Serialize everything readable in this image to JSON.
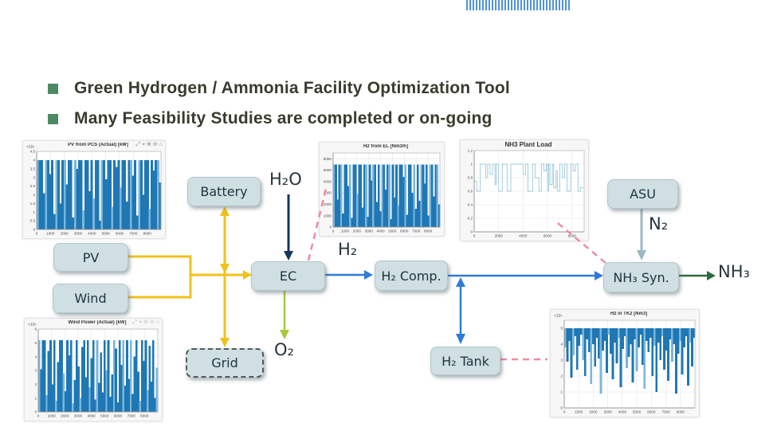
{
  "slide": {
    "bullets": [
      {
        "text": "Green Hydrogen / Ammonia Facility Optimization Tool"
      },
      {
        "text": "Many Feasibility Studies are completed or on-going"
      }
    ]
  },
  "colors": {
    "bullet_green": "#4d8a63",
    "title_text": "#3a3a2e",
    "box_fill": "#cfdfe2",
    "box_border": "#b3c6ca",
    "box_text": "#1e3440",
    "power_yellow": "#f0c21b",
    "water_navy": "#16365c",
    "oxygen_green": "#a6c93d",
    "hydrogen_blue": "#2f7bd6",
    "nitrogen_steel": "#9cb9c1",
    "ammonia_green": "#2e6b3c",
    "monitor_pink": "#f08ba0",
    "chart_blue": "#1f77b4"
  },
  "boxes": {
    "battery": {
      "label": "Battery"
    },
    "pv": {
      "label": "PV"
    },
    "wind": {
      "label": "Wind"
    },
    "ec": {
      "label": "EC"
    },
    "h2comp": {
      "label": "H₂ Comp."
    },
    "h2tank": {
      "label": "H₂ Tank"
    },
    "nh3syn": {
      "label": "NH₃ Syn."
    },
    "asu": {
      "label": "ASU"
    },
    "grid": {
      "label": "Grid"
    }
  },
  "stream_labels": {
    "h2o": "H₂O",
    "h2": "H₂",
    "o2": "O₂",
    "n2": "N₂",
    "nh3": "NH₃"
  },
  "chart_toolbar": {
    "icons": [
      {
        "name": "export-icon",
        "glyph": "⤢"
      },
      {
        "name": "datatip-icon",
        "glyph": "⌖"
      },
      {
        "name": "zoom-in-icon",
        "glyph": "⊕"
      },
      {
        "name": "zoom-out-icon",
        "glyph": "⊖"
      },
      {
        "name": "home-icon",
        "glyph": "⌂"
      }
    ]
  },
  "chart_data": [
    {
      "id": "pv",
      "type": "bar",
      "title": "PV from PCS (Actual) [kW]",
      "exp_label": "×10⁴",
      "xlabel": "",
      "ylabel": "",
      "toolbar": true,
      "color": "#1f77b4",
      "color_light": "#7ab6dd",
      "ylim": [
        0,
        4.5
      ],
      "yticks": [
        0,
        0.5,
        1,
        1.5,
        2,
        2.5,
        3,
        3.5,
        4,
        4.5
      ],
      "xlim": [
        0,
        9000
      ],
      "xticks": [
        0,
        1000,
        2000,
        3000,
        4000,
        5000,
        6000,
        7000,
        8000
      ],
      "values": [
        4,
        4,
        4,
        2.1,
        4,
        4,
        3.2,
        4,
        0.9,
        4,
        4,
        1.5,
        4,
        4,
        2.6,
        4,
        4,
        0.7,
        4,
        3.5,
        4,
        4,
        1.1,
        4,
        4,
        2.2,
        4,
        1.8,
        4,
        4,
        0.5,
        4,
        4,
        2.9,
        4,
        4,
        1.3,
        4,
        3.6,
        4,
        2.4,
        4,
        4,
        1.6,
        4,
        4,
        3.1,
        4,
        0.8,
        4,
        4,
        2.0,
        4,
        4,
        1.2,
        4,
        3.4,
        4,
        4,
        2.7
      ]
    },
    {
      "id": "wind",
      "type": "bar",
      "title": "Wind Power (Actual) [kW]",
      "exp_label": "×10⁴",
      "xlabel": "",
      "ylabel": "",
      "toolbar": true,
      "color": "#1f77b4",
      "color_light": "#7ab6dd",
      "ylim": [
        0,
        6
      ],
      "yticks": [
        0,
        1,
        2,
        3,
        4,
        5,
        6
      ],
      "xlim": [
        0,
        9000
      ],
      "xticks": [
        0,
        1000,
        2000,
        3000,
        4000,
        5000,
        6000,
        7000,
        8000
      ],
      "values": [
        5.2,
        3.1,
        5.2,
        5.2,
        1.2,
        4.4,
        5.2,
        2.0,
        5.2,
        0.8,
        3.6,
        5.2,
        5.2,
        2.8,
        1.5,
        5.2,
        4.1,
        5.2,
        0.6,
        2.3,
        5.2,
        3.3,
        1.0,
        4.7,
        5.2,
        2.5,
        5.2,
        1.8,
        3.9,
        5.2,
        0.9,
        5.2,
        2.1,
        4.3,
        1.4,
        5.2,
        3.0,
        5.2,
        1.1,
        2.7,
        5.2,
        4.6,
        0.7,
        5.2,
        3.4,
        5.2,
        1.9,
        5.2,
        2.4,
        5.2,
        1.3,
        4.0,
        5.2,
        2.9,
        0.8,
        5.2,
        3.7,
        5.2,
        1.6,
        4.8,
        2.2,
        5.2,
        1.0,
        3.2
      ]
    },
    {
      "id": "el",
      "type": "bar",
      "title": "H2 from EL [Nm3/h]",
      "exp_label": "",
      "xlabel": "",
      "ylabel": "",
      "toolbar": false,
      "color": "#1f77b4",
      "color_light": "#7ab6dd",
      "ylim": [
        0,
        6500
      ],
      "yticks": [
        0,
        1000,
        2000,
        3000,
        4000,
        5000,
        6000
      ],
      "xlim": [
        0,
        9000
      ],
      "xticks": [
        0,
        1000,
        2000,
        3000,
        4000,
        5000,
        6000,
        7000,
        8000
      ],
      "values": [
        5500,
        5500,
        2400,
        5500,
        5500,
        1200,
        5500,
        5500,
        3600,
        5500,
        800,
        5500,
        5500,
        2900,
        5500,
        5500,
        1700,
        5500,
        5500,
        900,
        5500,
        4100,
        5500,
        5500,
        2200,
        5500,
        1400,
        5500,
        5500,
        3300,
        5500,
        5500,
        700,
        5500,
        2600,
        5500,
        1900,
        5500,
        5500,
        4400,
        5500,
        1100,
        5500,
        5500,
        3000,
        5500,
        1600,
        5500,
        2300,
        5500,
        5500,
        3800,
        5500,
        1000,
        5500,
        5500,
        2700,
        5500,
        5500,
        2000
      ]
    },
    {
      "id": "nh3load",
      "type": "step",
      "title": "NH3 Plant Load",
      "exp_label": "",
      "xlabel": "",
      "ylabel": "",
      "toolbar": false,
      "color": "#9cc8dc",
      "color_light": "#9cc8dc",
      "ylim": [
        0,
        1.2
      ],
      "yticks": [
        0,
        0.2,
        0.4,
        0.6,
        0.8,
        1,
        1.2
      ],
      "xlim": [
        0,
        9000
      ],
      "xticks": [
        0,
        2000,
        4000,
        6000,
        8000
      ],
      "points": [
        [
          0,
          0.75
        ],
        [
          200,
          0.6
        ],
        [
          500,
          1
        ],
        [
          900,
          1
        ],
        [
          950,
          0.8
        ],
        [
          1100,
          1
        ],
        [
          1300,
          0.85
        ],
        [
          1500,
          1
        ],
        [
          1700,
          0.7
        ],
        [
          1800,
          1
        ],
        [
          2000,
          0.6
        ],
        [
          2300,
          1
        ],
        [
          2700,
          0.6
        ],
        [
          3000,
          1
        ],
        [
          3900,
          1
        ],
        [
          4000,
          0.85
        ],
        [
          4200,
          1
        ],
        [
          4400,
          0.6
        ],
        [
          4800,
          1
        ],
        [
          5000,
          0.8
        ],
        [
          5300,
          0.6
        ],
        [
          5500,
          1
        ],
        [
          5700,
          0.9
        ],
        [
          5900,
          1
        ],
        [
          6000,
          0.6
        ],
        [
          6100,
          1
        ],
        [
          6200,
          0.7
        ],
        [
          6400,
          1
        ],
        [
          6500,
          0.65
        ],
        [
          6700,
          0.9
        ],
        [
          6800,
          0.6
        ],
        [
          7000,
          1
        ],
        [
          7200,
          0.8
        ],
        [
          7400,
          1
        ],
        [
          7600,
          0.6
        ],
        [
          7900,
          1
        ],
        [
          8100,
          0.9
        ],
        [
          8300,
          1
        ],
        [
          8500,
          0.6
        ],
        [
          8700,
          0.65
        ]
      ]
    },
    {
      "id": "tk2",
      "type": "bar_from_top",
      "title": "H2 in TK2 [Nm3]",
      "exp_label": "×10⁴",
      "xlabel": "",
      "ylabel": "",
      "toolbar": false,
      "top": 5,
      "color": "#1f77b4",
      "color_light": "#7ab6dd",
      "ylim": [
        0,
        5.5
      ],
      "yticks": [
        0,
        1,
        2,
        3,
        4,
        5
      ],
      "xlim": [
        0,
        9000
      ],
      "xticks": [
        0,
        1000,
        2000,
        3000,
        4000,
        5000,
        6000,
        7000,
        8000
      ],
      "values": [
        3.8,
        2.9,
        4.2,
        1.9,
        3.3,
        4.5,
        2.4,
        3.9,
        4.6,
        3.0,
        2.0,
        4.3,
        3.5,
        1.5,
        4.0,
        2.6,
        4.4,
        3.1,
        0.9,
        3.6,
        4.2,
        2.2,
        4.6,
        3.4,
        1.8,
        4.1,
        2.8,
        4.4,
        1.3,
        3.7,
        4.5,
        2.5,
        3.2,
        4.0,
        1.6,
        4.3,
        2.3,
        3.8,
        4.6,
        2.7,
        1.2,
        4.2,
        3.5,
        4.4,
        2.0,
        3.9,
        1.0,
        4.1,
        3.0,
        4.5,
        2.4,
        3.6,
        1.7,
        4.3,
        2.9,
        4.0,
        0.9,
        3.4,
        4.2,
        2.1,
        3.8,
        4.5,
        1.4,
        4.1,
        2.6,
        4.4
      ]
    }
  ]
}
